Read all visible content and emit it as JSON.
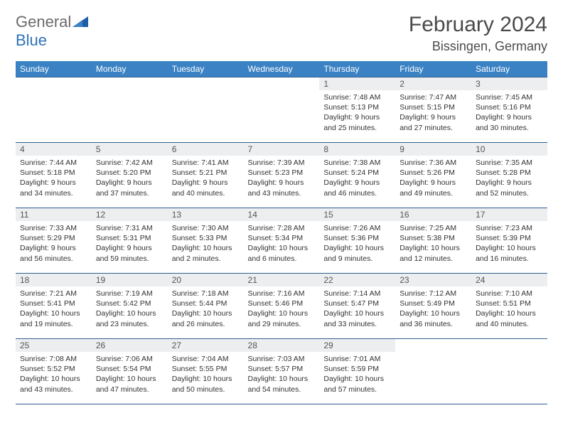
{
  "brand": {
    "word1": "General",
    "word2": "Blue"
  },
  "title": "February 2024",
  "location": "Bissingen, Germany",
  "days_of_week": [
    "Sunday",
    "Monday",
    "Tuesday",
    "Wednesday",
    "Thursday",
    "Friday",
    "Saturday"
  ],
  "colors": {
    "header_bar": "#3b82c4",
    "row_border": "#2f5f8f",
    "daynum_bg": "#edeef0",
    "text": "#333333",
    "title_text": "#4a4a4a",
    "brand_gray": "#6a6a6a",
    "brand_blue": "#2f72b8"
  },
  "grid": [
    [
      {
        "n": "",
        "sr": "",
        "ss": "",
        "dl1": "",
        "dl2": ""
      },
      {
        "n": "",
        "sr": "",
        "ss": "",
        "dl1": "",
        "dl2": ""
      },
      {
        "n": "",
        "sr": "",
        "ss": "",
        "dl1": "",
        "dl2": ""
      },
      {
        "n": "",
        "sr": "",
        "ss": "",
        "dl1": "",
        "dl2": ""
      },
      {
        "n": "1",
        "sr": "Sunrise: 7:48 AM",
        "ss": "Sunset: 5:13 PM",
        "dl1": "Daylight: 9 hours",
        "dl2": "and 25 minutes."
      },
      {
        "n": "2",
        "sr": "Sunrise: 7:47 AM",
        "ss": "Sunset: 5:15 PM",
        "dl1": "Daylight: 9 hours",
        "dl2": "and 27 minutes."
      },
      {
        "n": "3",
        "sr": "Sunrise: 7:45 AM",
        "ss": "Sunset: 5:16 PM",
        "dl1": "Daylight: 9 hours",
        "dl2": "and 30 minutes."
      }
    ],
    [
      {
        "n": "4",
        "sr": "Sunrise: 7:44 AM",
        "ss": "Sunset: 5:18 PM",
        "dl1": "Daylight: 9 hours",
        "dl2": "and 34 minutes."
      },
      {
        "n": "5",
        "sr": "Sunrise: 7:42 AM",
        "ss": "Sunset: 5:20 PM",
        "dl1": "Daylight: 9 hours",
        "dl2": "and 37 minutes."
      },
      {
        "n": "6",
        "sr": "Sunrise: 7:41 AM",
        "ss": "Sunset: 5:21 PM",
        "dl1": "Daylight: 9 hours",
        "dl2": "and 40 minutes."
      },
      {
        "n": "7",
        "sr": "Sunrise: 7:39 AM",
        "ss": "Sunset: 5:23 PM",
        "dl1": "Daylight: 9 hours",
        "dl2": "and 43 minutes."
      },
      {
        "n": "8",
        "sr": "Sunrise: 7:38 AM",
        "ss": "Sunset: 5:24 PM",
        "dl1": "Daylight: 9 hours",
        "dl2": "and 46 minutes."
      },
      {
        "n": "9",
        "sr": "Sunrise: 7:36 AM",
        "ss": "Sunset: 5:26 PM",
        "dl1": "Daylight: 9 hours",
        "dl2": "and 49 minutes."
      },
      {
        "n": "10",
        "sr": "Sunrise: 7:35 AM",
        "ss": "Sunset: 5:28 PM",
        "dl1": "Daylight: 9 hours",
        "dl2": "and 52 minutes."
      }
    ],
    [
      {
        "n": "11",
        "sr": "Sunrise: 7:33 AM",
        "ss": "Sunset: 5:29 PM",
        "dl1": "Daylight: 9 hours",
        "dl2": "and 56 minutes."
      },
      {
        "n": "12",
        "sr": "Sunrise: 7:31 AM",
        "ss": "Sunset: 5:31 PM",
        "dl1": "Daylight: 9 hours",
        "dl2": "and 59 minutes."
      },
      {
        "n": "13",
        "sr": "Sunrise: 7:30 AM",
        "ss": "Sunset: 5:33 PM",
        "dl1": "Daylight: 10 hours",
        "dl2": "and 2 minutes."
      },
      {
        "n": "14",
        "sr": "Sunrise: 7:28 AM",
        "ss": "Sunset: 5:34 PM",
        "dl1": "Daylight: 10 hours",
        "dl2": "and 6 minutes."
      },
      {
        "n": "15",
        "sr": "Sunrise: 7:26 AM",
        "ss": "Sunset: 5:36 PM",
        "dl1": "Daylight: 10 hours",
        "dl2": "and 9 minutes."
      },
      {
        "n": "16",
        "sr": "Sunrise: 7:25 AM",
        "ss": "Sunset: 5:38 PM",
        "dl1": "Daylight: 10 hours",
        "dl2": "and 12 minutes."
      },
      {
        "n": "17",
        "sr": "Sunrise: 7:23 AM",
        "ss": "Sunset: 5:39 PM",
        "dl1": "Daylight: 10 hours",
        "dl2": "and 16 minutes."
      }
    ],
    [
      {
        "n": "18",
        "sr": "Sunrise: 7:21 AM",
        "ss": "Sunset: 5:41 PM",
        "dl1": "Daylight: 10 hours",
        "dl2": "and 19 minutes."
      },
      {
        "n": "19",
        "sr": "Sunrise: 7:19 AM",
        "ss": "Sunset: 5:42 PM",
        "dl1": "Daylight: 10 hours",
        "dl2": "and 23 minutes."
      },
      {
        "n": "20",
        "sr": "Sunrise: 7:18 AM",
        "ss": "Sunset: 5:44 PM",
        "dl1": "Daylight: 10 hours",
        "dl2": "and 26 minutes."
      },
      {
        "n": "21",
        "sr": "Sunrise: 7:16 AM",
        "ss": "Sunset: 5:46 PM",
        "dl1": "Daylight: 10 hours",
        "dl2": "and 29 minutes."
      },
      {
        "n": "22",
        "sr": "Sunrise: 7:14 AM",
        "ss": "Sunset: 5:47 PM",
        "dl1": "Daylight: 10 hours",
        "dl2": "and 33 minutes."
      },
      {
        "n": "23",
        "sr": "Sunrise: 7:12 AM",
        "ss": "Sunset: 5:49 PM",
        "dl1": "Daylight: 10 hours",
        "dl2": "and 36 minutes."
      },
      {
        "n": "24",
        "sr": "Sunrise: 7:10 AM",
        "ss": "Sunset: 5:51 PM",
        "dl1": "Daylight: 10 hours",
        "dl2": "and 40 minutes."
      }
    ],
    [
      {
        "n": "25",
        "sr": "Sunrise: 7:08 AM",
        "ss": "Sunset: 5:52 PM",
        "dl1": "Daylight: 10 hours",
        "dl2": "and 43 minutes."
      },
      {
        "n": "26",
        "sr": "Sunrise: 7:06 AM",
        "ss": "Sunset: 5:54 PM",
        "dl1": "Daylight: 10 hours",
        "dl2": "and 47 minutes."
      },
      {
        "n": "27",
        "sr": "Sunrise: 7:04 AM",
        "ss": "Sunset: 5:55 PM",
        "dl1": "Daylight: 10 hours",
        "dl2": "and 50 minutes."
      },
      {
        "n": "28",
        "sr": "Sunrise: 7:03 AM",
        "ss": "Sunset: 5:57 PM",
        "dl1": "Daylight: 10 hours",
        "dl2": "and 54 minutes."
      },
      {
        "n": "29",
        "sr": "Sunrise: 7:01 AM",
        "ss": "Sunset: 5:59 PM",
        "dl1": "Daylight: 10 hours",
        "dl2": "and 57 minutes."
      },
      {
        "n": "",
        "sr": "",
        "ss": "",
        "dl1": "",
        "dl2": ""
      },
      {
        "n": "",
        "sr": "",
        "ss": "",
        "dl1": "",
        "dl2": ""
      }
    ]
  ]
}
